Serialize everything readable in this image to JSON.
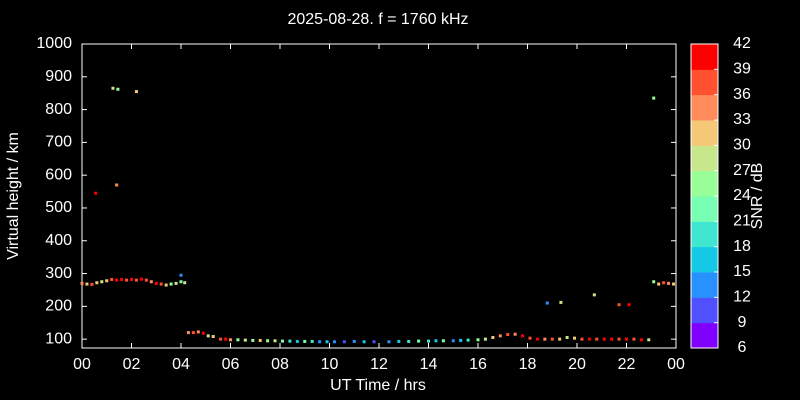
{
  "chart_data": {
    "type": "scatter",
    "title": "2025-08-28. f = 1760 kHz",
    "x_label": "UT Time / hrs",
    "y_label": "Virtual height / km",
    "xlim": [
      0,
      24
    ],
    "ylim": [
      73,
      1000
    ],
    "xticks": [
      {
        "value": 0,
        "label": "00"
      },
      {
        "value": 2,
        "label": "02"
      },
      {
        "value": 4,
        "label": "04"
      },
      {
        "value": 6,
        "label": "06"
      },
      {
        "value": 8,
        "label": "08"
      },
      10,
      12,
      14,
      16,
      18,
      20,
      22,
      {
        "value": 24,
        "label": "00"
      }
    ],
    "yticks": [
      100,
      200,
      300,
      400,
      500,
      600,
      700,
      800,
      900,
      1000
    ],
    "x": [
      0.0,
      0.2,
      0.4,
      0.6,
      0.8,
      1.0,
      1.2,
      1.4,
      1.6,
      1.8,
      2.0,
      2.2,
      2.4,
      2.6,
      2.8,
      3.0,
      3.2,
      3.4,
      3.6,
      3.8,
      4.0,
      4.15,
      4.3,
      4.5,
      4.7,
      4.9,
      5.1,
      5.3,
      5.6,
      5.8,
      6.0,
      6.3,
      6.6,
      6.9,
      7.2,
      7.5,
      7.8,
      8.1,
      8.4,
      8.7,
      9.0,
      9.3,
      9.6,
      9.9,
      10.2,
      10.6,
      11.0,
      11.4,
      11.8,
      12.4,
      12.8,
      13.2,
      13.6,
      14.0,
      14.3,
      14.6,
      15.0,
      15.3,
      15.6,
      16.0,
      16.3,
      16.6,
      16.9,
      17.2,
      17.5,
      17.8,
      18.1,
      18.4,
      18.7,
      19.0,
      19.3,
      19.6,
      19.9,
      20.2,
      20.5,
      20.8,
      21.1,
      21.4,
      21.7,
      22.0,
      22.3,
      22.6,
      22.9,
      23.1,
      23.3,
      23.5,
      23.7,
      23.9,
      0.55,
      1.25,
      1.45,
      2.2,
      1.4,
      4.0,
      18.8,
      19.35,
      20.7,
      21.7,
      22.1,
      23.1
    ],
    "values": [
      270,
      268,
      267,
      272,
      275,
      278,
      282,
      280,
      282,
      280,
      282,
      280,
      283,
      280,
      275,
      270,
      268,
      265,
      268,
      270,
      275,
      272,
      120,
      120,
      122,
      118,
      110,
      108,
      100,
      100,
      98,
      98,
      97,
      96,
      96,
      95,
      95,
      94,
      94,
      93,
      93,
      93,
      92,
      92,
      92,
      92,
      93,
      92,
      92,
      92,
      93,
      93,
      94,
      94,
      95,
      95,
      95,
      96,
      97,
      98,
      100,
      105,
      110,
      114,
      115,
      110,
      103,
      100,
      100,
      100,
      100,
      105,
      103,
      100,
      100,
      100,
      100,
      100,
      100,
      100,
      100,
      98,
      98,
      275,
      268,
      272,
      270,
      268,
      545,
      865,
      862,
      855,
      570,
      295,
      210,
      212,
      235,
      205,
      205,
      835
    ],
    "snr": [
      33,
      30,
      36,
      30,
      27,
      30,
      36,
      39,
      39,
      36,
      39,
      36,
      39,
      36,
      33,
      39,
      36,
      30,
      24,
      27,
      21,
      27,
      33,
      36,
      33,
      39,
      27,
      30,
      36,
      39,
      33,
      24,
      27,
      24,
      30,
      24,
      27,
      21,
      18,
      15,
      21,
      18,
      12,
      15,
      12,
      9,
      12,
      15,
      9,
      12,
      15,
      18,
      21,
      18,
      15,
      21,
      12,
      15,
      18,
      24,
      27,
      30,
      33,
      36,
      33,
      39,
      36,
      39,
      33,
      36,
      30,
      27,
      30,
      36,
      39,
      36,
      39,
      39,
      36,
      39,
      36,
      39,
      27,
      24,
      30,
      36,
      33,
      30,
      40,
      27,
      25,
      30,
      33,
      13,
      14,
      27,
      27,
      38,
      40,
      24
    ],
    "colorbar": {
      "label": "SNR / dB",
      "lim": [
        6,
        42
      ],
      "ticks": [
        6,
        9,
        12,
        15,
        18,
        21,
        24,
        27,
        30,
        33,
        36,
        39,
        42
      ],
      "colors": [
        "#8000ff",
        "#5050ff",
        "#2890ff",
        "#14c8e6",
        "#40e6d0",
        "#78ffb4",
        "#98ff98",
        "#c8e68c",
        "#f5c878",
        "#ff8c5a",
        "#ff5030",
        "#ff0000"
      ]
    }
  }
}
